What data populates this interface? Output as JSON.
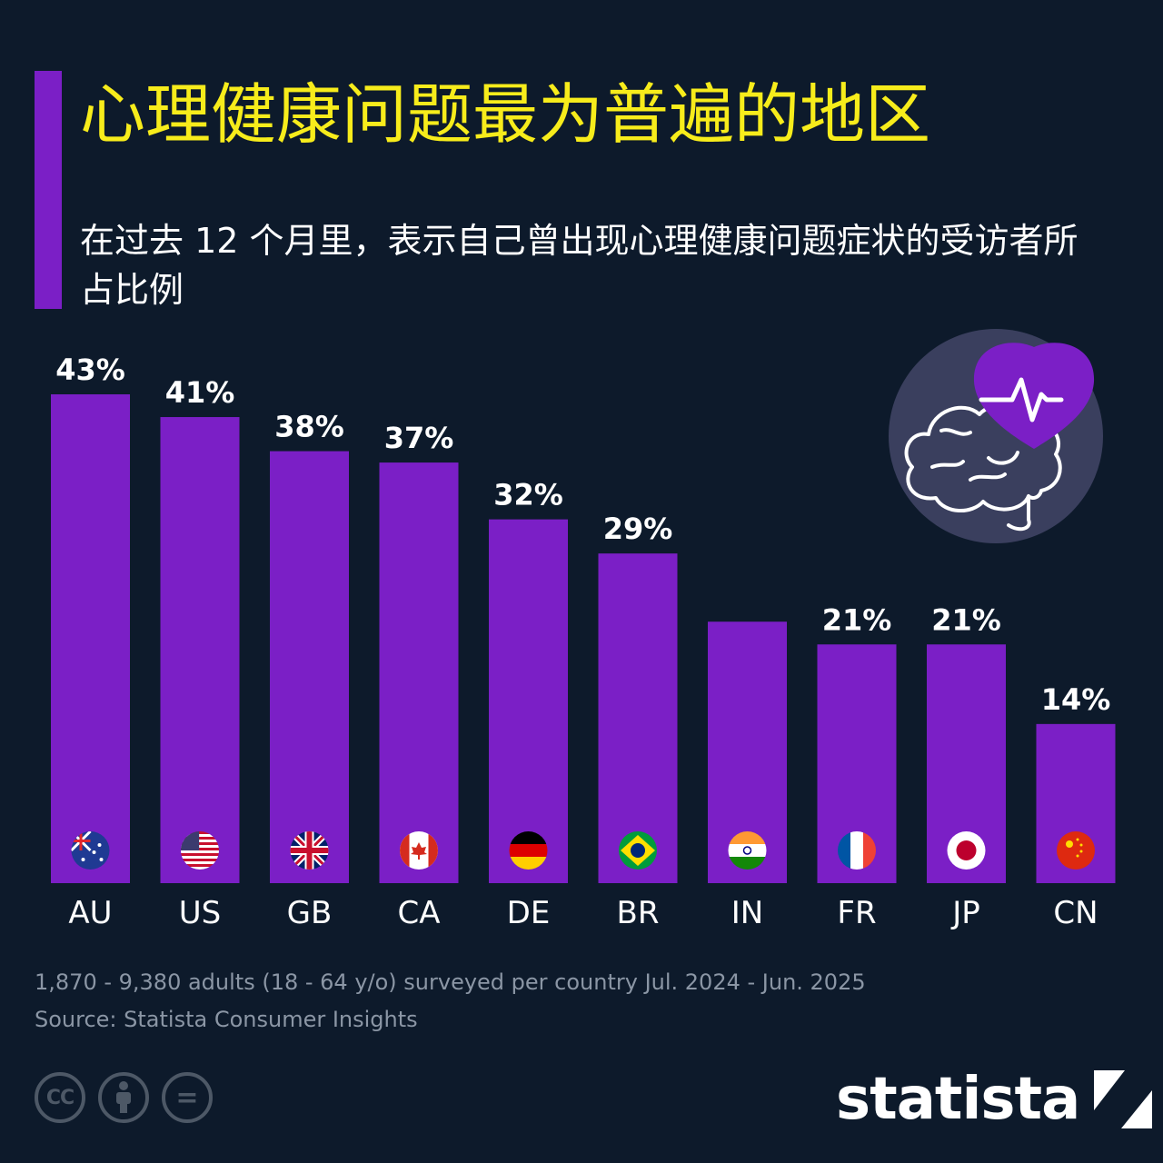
{
  "header": {
    "title": "心理健康问题最为普遍的地区",
    "subtitle": "在过去 12 个月里，表示自己曾出现心理健康问题症状的受访者所占比例"
  },
  "chart_data": {
    "type": "bar",
    "categories": [
      "AU",
      "US",
      "GB",
      "CA",
      "DE",
      "BR",
      "IN",
      "FR",
      "JP",
      "CN"
    ],
    "values": [
      43,
      41,
      38,
      37,
      32,
      29,
      23,
      21,
      21,
      14
    ],
    "data_labels": [
      "43%",
      "41%",
      "38%",
      "37%",
      "32%",
      "29%",
      "",
      "21%",
      "21%",
      "14%"
    ],
    "flags": [
      "australia-flag",
      "usa-flag",
      "uk-flag",
      "canada-flag",
      "germany-flag",
      "brazil-flag",
      "india-flag",
      "france-flag",
      "japan-flag",
      "china-flag"
    ],
    "bar_color": "#7b1fc6",
    "ylim": [
      0,
      43
    ]
  },
  "footer": {
    "note": "1,870 - 9,380 adults (18 - 64 y/o) surveyed per country Jul. 2024 - Jun. 2025",
    "source": "Source: Statista Consumer Insights",
    "license_icons": [
      "cc-icon",
      "attribution-icon",
      "no-derivatives-icon"
    ],
    "cc_text": "CC",
    "nd_text": "=",
    "brand": "statista"
  },
  "colors": {
    "background": "#0d1a2b",
    "title": "#f7ec1b",
    "accent": "#7b1fc6",
    "muted": "#8b96a5"
  }
}
